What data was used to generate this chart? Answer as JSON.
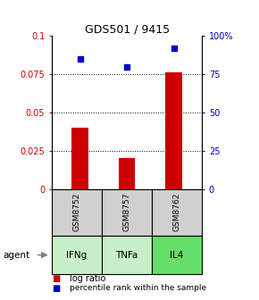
{
  "title": "GDS501 / 9415",
  "categories": [
    0,
    1,
    2
  ],
  "bar_labels": [
    "IFNg",
    "TNFa",
    "IL4"
  ],
  "gsm_labels": [
    "GSM8752",
    "GSM8757",
    "GSM8762"
  ],
  "log_ratios": [
    0.04,
    0.02,
    0.076
  ],
  "percentile_ranks": [
    85,
    80,
    92
  ],
  "bar_color": "#cc0000",
  "dot_color": "#0000cc",
  "left_ylim": [
    0,
    0.1
  ],
  "right_ylim": [
    0,
    100
  ],
  "left_yticks": [
    0,
    0.025,
    0.05,
    0.075,
    0.1
  ],
  "left_yticklabels": [
    "0",
    "0.025",
    "0.05",
    "0.075",
    "0.1"
  ],
  "right_yticks": [
    0,
    25,
    50,
    75,
    100
  ],
  "right_yticklabels": [
    "0",
    "25",
    "50",
    "75",
    "100%"
  ],
  "agent_colors": [
    "#c8f0c8",
    "#c8f0c8",
    "#66dd66"
  ],
  "gsm_color": "#d0d0d0",
  "bar_width": 0.35,
  "background_color": "#ffffff"
}
